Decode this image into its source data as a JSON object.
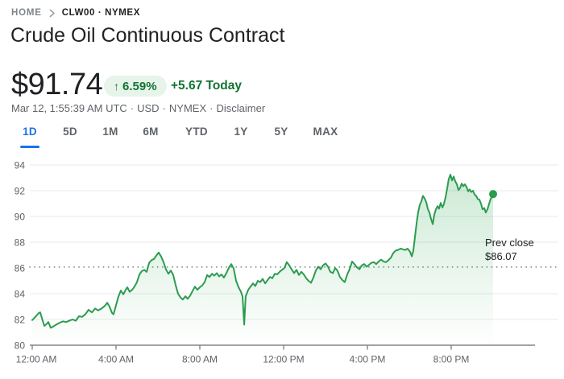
{
  "breadcrumb": {
    "home": "HOME",
    "symbol": "CLW00 · NYMEX"
  },
  "title": "Crude Oil Continuous Contract",
  "quote": {
    "price": "$91.74",
    "change_percent": "6.59%",
    "change_today": "+5.67 Today",
    "timestamp": "Mar 12, 1:55:39 AM UTC",
    "currency": "USD",
    "exchange": "NYMEX",
    "disclaimer": "Disclaimer"
  },
  "theme": {
    "positive_text": "#137333",
    "badge_bg": "#e6f4ea",
    "accent_blue": "#1a73e8",
    "line_green": "#2b9c4f",
    "fill_green": "#34a853",
    "grid_gray": "#e8eaed",
    "axis_gray": "#80868b",
    "label_gray": "#5f6368"
  },
  "tabs": [
    {
      "label": "1D",
      "active": true
    },
    {
      "label": "5D",
      "active": false
    },
    {
      "label": "1M",
      "active": false
    },
    {
      "label": "6M",
      "active": false
    },
    {
      "label": "YTD",
      "active": false
    },
    {
      "label": "1Y",
      "active": false
    },
    {
      "label": "5Y",
      "active": false
    },
    {
      "label": "MAX",
      "active": false
    }
  ],
  "chart_data": {
    "type": "area",
    "title": "Crude Oil Continuous Contract 1D price chart",
    "x_unit": "hours_since_midnight",
    "xlim": [
      0,
      25.2
    ],
    "ylim": [
      80,
      94.6
    ],
    "grid": "horizontal",
    "legend": "none",
    "x_ticks": [
      {
        "t": 0,
        "label": "12:00 AM"
      },
      {
        "t": 4,
        "label": "4:00 AM"
      },
      {
        "t": 8,
        "label": "8:00 AM"
      },
      {
        "t": 12,
        "label": "12:00 PM"
      },
      {
        "t": 16,
        "label": "4:00 PM"
      },
      {
        "t": 20,
        "label": "8:00 PM"
      }
    ],
    "y_ticks": [
      80,
      82,
      84,
      86,
      88,
      90,
      92,
      94
    ],
    "prev_close": {
      "label": "Prev close",
      "value_label": "$86.07",
      "value": 86.07
    },
    "last": {
      "price": 91.74,
      "time": 22.0
    },
    "points": [
      [
        0,
        81.95
      ],
      [
        0.15,
        82.2
      ],
      [
        0.31,
        82.5
      ],
      [
        0.38,
        82.55
      ],
      [
        0.5,
        81.9
      ],
      [
        0.58,
        81.5
      ],
      [
        0.69,
        81.65
      ],
      [
        0.77,
        81.8
      ],
      [
        0.88,
        81.35
      ],
      [
        1,
        81.45
      ],
      [
        1.15,
        81.6
      ],
      [
        1.31,
        81.75
      ],
      [
        1.46,
        81.85
      ],
      [
        1.62,
        81.8
      ],
      [
        1.77,
        81.9
      ],
      [
        1.92,
        82
      ],
      [
        2.08,
        81.9
      ],
      [
        2.23,
        82.25
      ],
      [
        2.38,
        82.2
      ],
      [
        2.54,
        82.4
      ],
      [
        2.69,
        82.75
      ],
      [
        2.85,
        82.55
      ],
      [
        3,
        82.85
      ],
      [
        3.15,
        82.7
      ],
      [
        3.31,
        82.85
      ],
      [
        3.46,
        83.05
      ],
      [
        3.58,
        83.3
      ],
      [
        3.69,
        83
      ],
      [
        3.81,
        82.5
      ],
      [
        3.88,
        82.4
      ],
      [
        4,
        83.1
      ],
      [
        4.12,
        83.8
      ],
      [
        4.23,
        84.25
      ],
      [
        4.35,
        83.95
      ],
      [
        4.46,
        84.3
      ],
      [
        4.54,
        84.5
      ],
      [
        4.65,
        84.15
      ],
      [
        4.77,
        84.3
      ],
      [
        4.88,
        84.55
      ],
      [
        5,
        84.9
      ],
      [
        5.12,
        85.5
      ],
      [
        5.23,
        85.75
      ],
      [
        5.35,
        85.85
      ],
      [
        5.46,
        85.7
      ],
      [
        5.58,
        86.4
      ],
      [
        5.69,
        86.6
      ],
      [
        5.81,
        86.7
      ],
      [
        5.92,
        86.95
      ],
      [
        6.04,
        87.2
      ],
      [
        6.15,
        86.9
      ],
      [
        6.27,
        86.45
      ],
      [
        6.38,
        85.9
      ],
      [
        6.5,
        85.55
      ],
      [
        6.62,
        85.8
      ],
      [
        6.73,
        85.45
      ],
      [
        6.85,
        84.65
      ],
      [
        6.96,
        84
      ],
      [
        7.08,
        83.7
      ],
      [
        7.19,
        83.55
      ],
      [
        7.31,
        83.8
      ],
      [
        7.42,
        83.6
      ],
      [
        7.54,
        83.85
      ],
      [
        7.65,
        84.2
      ],
      [
        7.77,
        84.55
      ],
      [
        7.88,
        84.3
      ],
      [
        8,
        84.5
      ],
      [
        8.12,
        84.65
      ],
      [
        8.23,
        84.9
      ],
      [
        8.35,
        85.45
      ],
      [
        8.46,
        85.3
      ],
      [
        8.58,
        85.55
      ],
      [
        8.69,
        85.4
      ],
      [
        8.81,
        85.6
      ],
      [
        8.92,
        85.35
      ],
      [
        9.04,
        85.5
      ],
      [
        9.15,
        85.25
      ],
      [
        9.27,
        85.6
      ],
      [
        9.38,
        86
      ],
      [
        9.5,
        86.3
      ],
      [
        9.62,
        85.95
      ],
      [
        9.73,
        85
      ],
      [
        9.85,
        84.5
      ],
      [
        9.96,
        84.15
      ],
      [
        10.04,
        83.8
      ],
      [
        10.12,
        81.6
      ],
      [
        10.19,
        83.8
      ],
      [
        10.31,
        84.3
      ],
      [
        10.42,
        84.55
      ],
      [
        10.54,
        84.8
      ],
      [
        10.65,
        84.6
      ],
      [
        10.77,
        85
      ],
      [
        10.88,
        84.9
      ],
      [
        11,
        85.15
      ],
      [
        11.12,
        84.8
      ],
      [
        11.23,
        85.05
      ],
      [
        11.35,
        85.3
      ],
      [
        11.46,
        85.2
      ],
      [
        11.58,
        85.55
      ],
      [
        11.69,
        85.5
      ],
      [
        11.81,
        85.7
      ],
      [
        11.92,
        85.85
      ],
      [
        12.04,
        86
      ],
      [
        12.15,
        86.45
      ],
      [
        12.27,
        86.2
      ],
      [
        12.38,
        85.9
      ],
      [
        12.5,
        85.6
      ],
      [
        12.62,
        85.85
      ],
      [
        12.73,
        85.45
      ],
      [
        12.85,
        85.7
      ],
      [
        12.96,
        85.5
      ],
      [
        13.08,
        85.2
      ],
      [
        13.19,
        85
      ],
      [
        13.31,
        84.85
      ],
      [
        13.42,
        85.25
      ],
      [
        13.54,
        85.8
      ],
      [
        13.65,
        86.1
      ],
      [
        13.77,
        85.9
      ],
      [
        13.88,
        86.2
      ],
      [
        14,
        86.35
      ],
      [
        14.12,
        86.1
      ],
      [
        14.23,
        85.7
      ],
      [
        14.35,
        85.6
      ],
      [
        14.46,
        86
      ],
      [
        14.58,
        85.75
      ],
      [
        14.69,
        85.3
      ],
      [
        14.81,
        85.05
      ],
      [
        14.92,
        84.9
      ],
      [
        15.04,
        85.5
      ],
      [
        15.15,
        85.9
      ],
      [
        15.27,
        86.5
      ],
      [
        15.38,
        86.3
      ],
      [
        15.5,
        86.05
      ],
      [
        15.62,
        85.9
      ],
      [
        15.73,
        86.2
      ],
      [
        15.85,
        86.3
      ],
      [
        15.96,
        86.1
      ],
      [
        16.08,
        86.25
      ],
      [
        16.19,
        86.4
      ],
      [
        16.31,
        86.45
      ],
      [
        16.42,
        86.3
      ],
      [
        16.54,
        86.5
      ],
      [
        16.65,
        86.65
      ],
      [
        16.77,
        86.5
      ],
      [
        16.88,
        86.45
      ],
      [
        17,
        86.6
      ],
      [
        17.12,
        86.8
      ],
      [
        17.23,
        87.15
      ],
      [
        17.35,
        87.35
      ],
      [
        17.46,
        87.4
      ],
      [
        17.58,
        87.5
      ],
      [
        17.69,
        87.45
      ],
      [
        17.81,
        87.4
      ],
      [
        17.92,
        87.5
      ],
      [
        18.04,
        87.25
      ],
      [
        18.12,
        86.9
      ],
      [
        18.19,
        87.3
      ],
      [
        18.27,
        88.4
      ],
      [
        18.35,
        89.5
      ],
      [
        18.42,
        90.3
      ],
      [
        18.5,
        90.9
      ],
      [
        18.58,
        91.2
      ],
      [
        18.65,
        91.6
      ],
      [
        18.73,
        91.4
      ],
      [
        18.81,
        91.1
      ],
      [
        18.88,
        90.6
      ],
      [
        18.96,
        90.3
      ],
      [
        19.04,
        89.8
      ],
      [
        19.12,
        89.4
      ],
      [
        19.19,
        90.1
      ],
      [
        19.27,
        90.55
      ],
      [
        19.35,
        90.8
      ],
      [
        19.42,
        90.6
      ],
      [
        19.5,
        91.05
      ],
      [
        19.58,
        90.7
      ],
      [
        19.65,
        90.95
      ],
      [
        19.73,
        91.5
      ],
      [
        19.81,
        92.2
      ],
      [
        19.88,
        92.9
      ],
      [
        19.96,
        93.25
      ],
      [
        20.04,
        92.8
      ],
      [
        20.12,
        93.1
      ],
      [
        20.19,
        92.75
      ],
      [
        20.27,
        92.5
      ],
      [
        20.35,
        92.05
      ],
      [
        20.42,
        92.2
      ],
      [
        20.5,
        92.55
      ],
      [
        20.58,
        92.35
      ],
      [
        20.65,
        92.5
      ],
      [
        20.73,
        92.3
      ],
      [
        20.81,
        91.95
      ],
      [
        20.88,
        92.1
      ],
      [
        20.96,
        91.9
      ],
      [
        21.04,
        92
      ],
      [
        21.12,
        91.7
      ],
      [
        21.19,
        91.6
      ],
      [
        21.27,
        91.35
      ],
      [
        21.35,
        91.3
      ],
      [
        21.42,
        91
      ],
      [
        21.5,
        90.55
      ],
      [
        21.58,
        90.65
      ],
      [
        21.65,
        90.3
      ],
      [
        21.73,
        90.55
      ],
      [
        21.81,
        91
      ],
      [
        21.88,
        91.35
      ],
      [
        21.96,
        91.6
      ],
      [
        22,
        91.74
      ]
    ]
  }
}
